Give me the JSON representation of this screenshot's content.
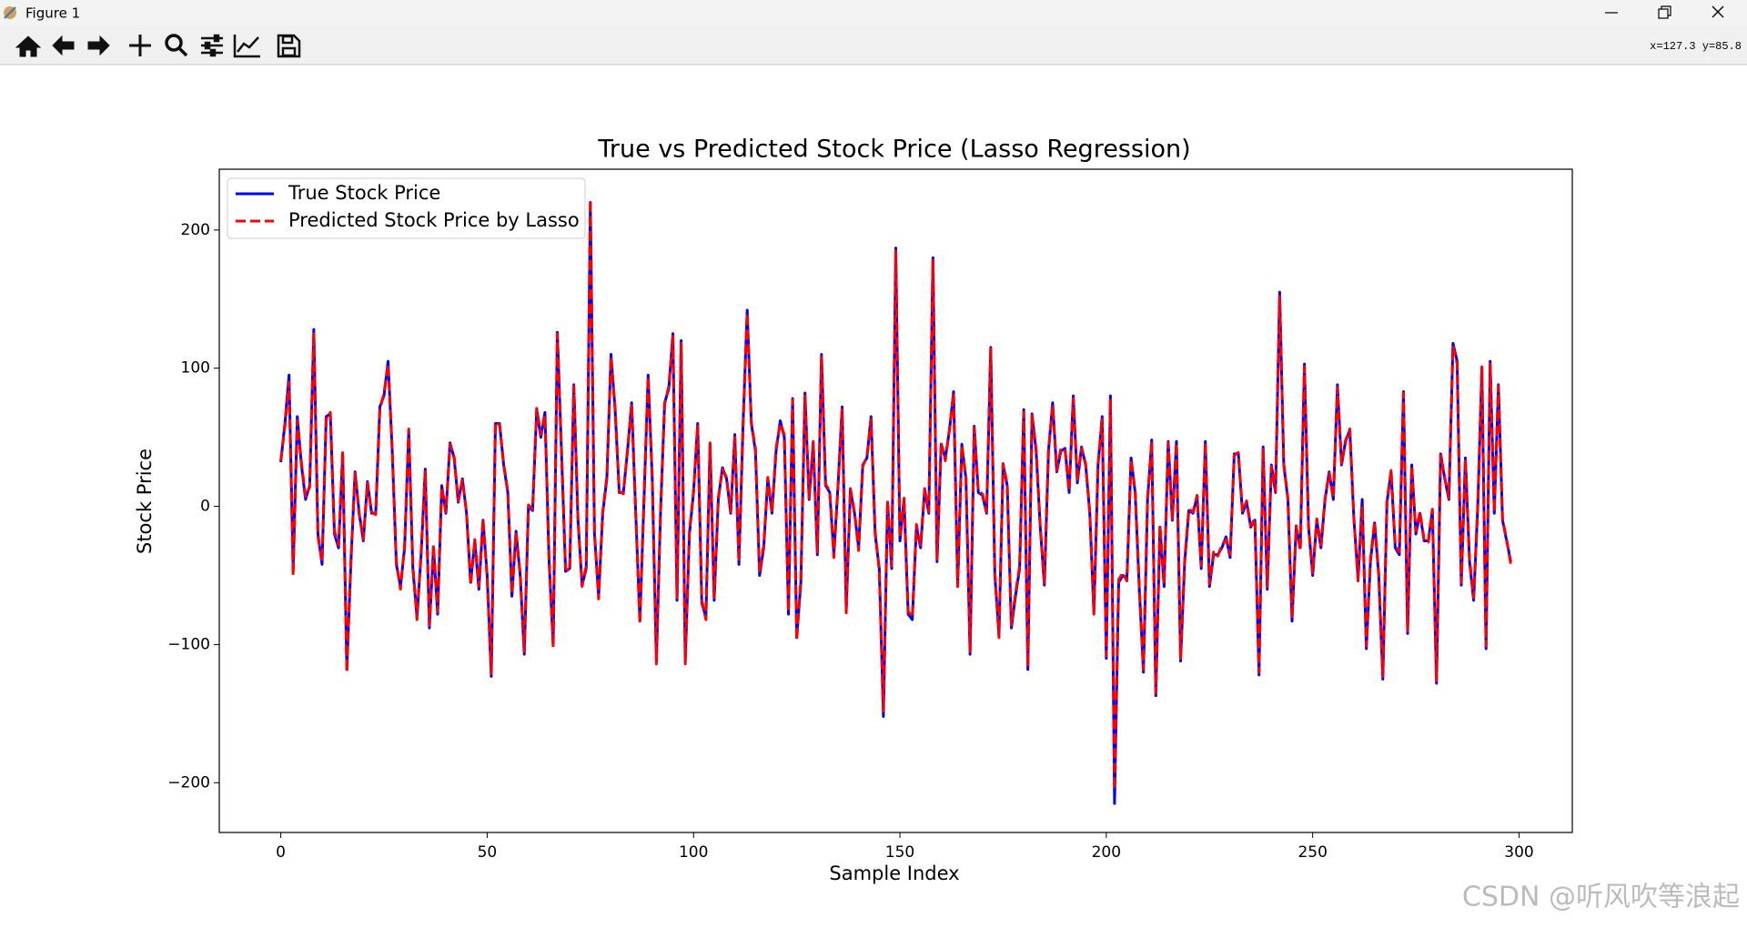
{
  "window": {
    "title": "Figure 1",
    "coords": "x=127.3 y=85.8"
  },
  "watermark": "CSDN @听风吹等浪起",
  "chart_data": {
    "type": "line",
    "title": "True vs Predicted Stock Price (Lasso Regression)",
    "xlabel": "Sample Index",
    "ylabel": "Stock Price",
    "xlim": [
      -14.9,
      312.9
    ],
    "xticks": [
      0,
      50,
      100,
      150,
      200,
      250,
      300
    ],
    "ylim": [
      -236,
      244
    ],
    "yticks": [
      {
        "value": -200,
        "label": "−200"
      },
      {
        "value": -100,
        "label": "−100"
      },
      0,
      100,
      200
    ],
    "legend": "upper left",
    "grid": false,
    "series": [
      {
        "name": "True Stock Price",
        "color": "#0000ff",
        "style": "solid",
        "values": [
          32,
          60,
          95,
          -45,
          65,
          30,
          5,
          15,
          128,
          -20,
          -42,
          65,
          67,
          -20,
          -30,
          38,
          -118,
          -40,
          25,
          -5,
          -25,
          18,
          -5,
          -5,
          72,
          80,
          105,
          40,
          -42,
          -58,
          -30,
          55,
          -45,
          -80,
          -35,
          27,
          -88,
          -30,
          -78,
          15,
          -5,
          46,
          35,
          3,
          20,
          -5,
          -55,
          -25,
          -60,
          -10,
          -50,
          -123,
          60,
          60,
          30,
          10,
          -65,
          -18,
          -50,
          -107,
          0,
          -3,
          70,
          50,
          68,
          -40,
          -100,
          126,
          40,
          -47,
          -45,
          88,
          -10,
          -57,
          -45,
          220,
          -20,
          -65,
          -5,
          20,
          110,
          70,
          10,
          10,
          40,
          75,
          -5,
          -83,
          5,
          95,
          20,
          -112,
          -5,
          75,
          85,
          125,
          -68,
          120,
          -112,
          -20,
          10,
          60,
          -70,
          -80,
          45,
          -68,
          5,
          28,
          20,
          -5,
          52,
          -42,
          60,
          142,
          60,
          40,
          -50,
          -30,
          20,
          -5,
          40,
          62,
          50,
          -78,
          78,
          -95,
          -55,
          82,
          5,
          45,
          -35,
          110,
          15,
          10,
          -35,
          15,
          72,
          -75,
          12,
          -5,
          -30,
          30,
          35,
          65,
          -20,
          -45,
          -152,
          3,
          -45,
          187,
          -25,
          5,
          -78,
          -82,
          -15,
          -30,
          12,
          -5,
          180,
          -40,
          45,
          35,
          55,
          83,
          -57,
          45,
          20,
          -107,
          58,
          10,
          8,
          -5,
          115,
          -50,
          -93,
          30,
          15,
          -88,
          -65,
          -45,
          70,
          -118,
          67,
          40,
          -15,
          -57,
          40,
          75,
          25,
          40,
          42,
          10,
          80,
          17,
          43,
          30,
          -5,
          -77,
          30,
          65,
          -110,
          80,
          -215,
          -55,
          -50,
          -52,
          35,
          10,
          -60,
          -120,
          5,
          48,
          -137,
          -15,
          -58,
          47,
          -10,
          47,
          -112,
          -40,
          -3,
          -5,
          7,
          -45,
          47,
          -58,
          -35,
          -35,
          -30,
          -22,
          -37,
          38,
          38,
          -5,
          3,
          -15,
          -10,
          -122,
          43,
          -60,
          30,
          10,
          155,
          30,
          5,
          -83,
          -15,
          -30,
          103,
          -15,
          -50,
          -10,
          -30,
          5,
          25,
          5,
          88,
          30,
          48,
          55,
          -10,
          -52,
          5,
          -103,
          -40,
          -12,
          -50,
          -125,
          3,
          25,
          -30,
          -35,
          83,
          -92,
          30,
          -20,
          -5,
          -25,
          -25,
          -3,
          -128,
          38,
          20,
          5,
          118,
          105,
          -57,
          35,
          -40,
          -68,
          0,
          100,
          -103,
          105,
          -5,
          88,
          -10,
          -25,
          -40
        ]
      },
      {
        "name": "Predicted Stock Price by Lasso",
        "color": "#ff0000",
        "style": "dashed",
        "values": [
          33,
          58,
          90,
          -50,
          62,
          32,
          7,
          14,
          126,
          -22,
          -40,
          63,
          68,
          -18,
          -28,
          40,
          -120,
          -38,
          24,
          -6,
          -24,
          17,
          -4,
          -6,
          70,
          82,
          103,
          42,
          -40,
          -60,
          -28,
          56,
          -43,
          -82,
          -33,
          25,
          -86,
          -28,
          -76,
          14,
          -4,
          45,
          36,
          4,
          19,
          -4,
          -57,
          -24,
          -58,
          -9,
          -52,
          -121,
          61,
          59,
          31,
          11,
          -63,
          -19,
          -48,
          -105,
          1,
          -2,
          71,
          52,
          66,
          -38,
          -102,
          125,
          42,
          -45,
          -47,
          87,
          -8,
          -58,
          -43,
          222,
          -18,
          -67,
          -4,
          22,
          108,
          72,
          11,
          9,
          41,
          74,
          -6,
          -85,
          6,
          94,
          21,
          -114,
          -4,
          74,
          87,
          123,
          -66,
          118,
          -114,
          -18,
          11,
          59,
          -68,
          -82,
          46,
          -66,
          6,
          27,
          21,
          -4,
          50,
          -40,
          58,
          140,
          61,
          42,
          -48,
          -28,
          21,
          -4,
          42,
          60,
          52,
          -76,
          77,
          -97,
          -53,
          80,
          6,
          47,
          -33,
          108,
          16,
          11,
          -37,
          14,
          70,
          -77,
          13,
          -4,
          -32,
          29,
          36,
          63,
          -18,
          -47,
          -148,
          4,
          -43,
          185,
          -23,
          6,
          -76,
          -80,
          -13,
          -28,
          13,
          -4,
          178,
          -38,
          46,
          33,
          56,
          82,
          -58,
          44,
          21,
          -105,
          57,
          11,
          9,
          -4,
          114,
          -48,
          -95,
          31,
          16,
          -86,
          -63,
          -43,
          68,
          -116,
          66,
          42,
          -14,
          -55,
          41,
          73,
          26,
          42,
          41,
          11,
          78,
          18,
          42,
          31,
          -4,
          -78,
          31,
          63,
          -108,
          78,
          -205,
          -53,
          -48,
          -54,
          34,
          11,
          -58,
          -118,
          6,
          47,
          -135,
          -14,
          -56,
          46,
          -9,
          46,
          -110,
          -38,
          -2,
          -4,
          8,
          -43,
          46,
          -56,
          -33,
          -36,
          -28,
          -24,
          -35,
          37,
          39,
          -4,
          4,
          -14,
          -9,
          -120,
          42,
          -58,
          29,
          11,
          152,
          31,
          6,
          -81,
          -14,
          -32,
          101,
          -14,
          -48,
          -9,
          -28,
          6,
          24,
          6,
          86,
          31,
          47,
          56,
          -9,
          -54,
          0,
          -101,
          -38,
          -11,
          -48,
          -123,
          4,
          26,
          -28,
          -33,
          82,
          -90,
          29,
          -18,
          -4,
          -24,
          -26,
          -2,
          -126,
          37,
          21,
          6,
          116,
          103,
          -55,
          34,
          -38,
          -66,
          1,
          101,
          -101,
          103,
          -4,
          87,
          -9,
          -24,
          -42
        ]
      }
    ]
  }
}
